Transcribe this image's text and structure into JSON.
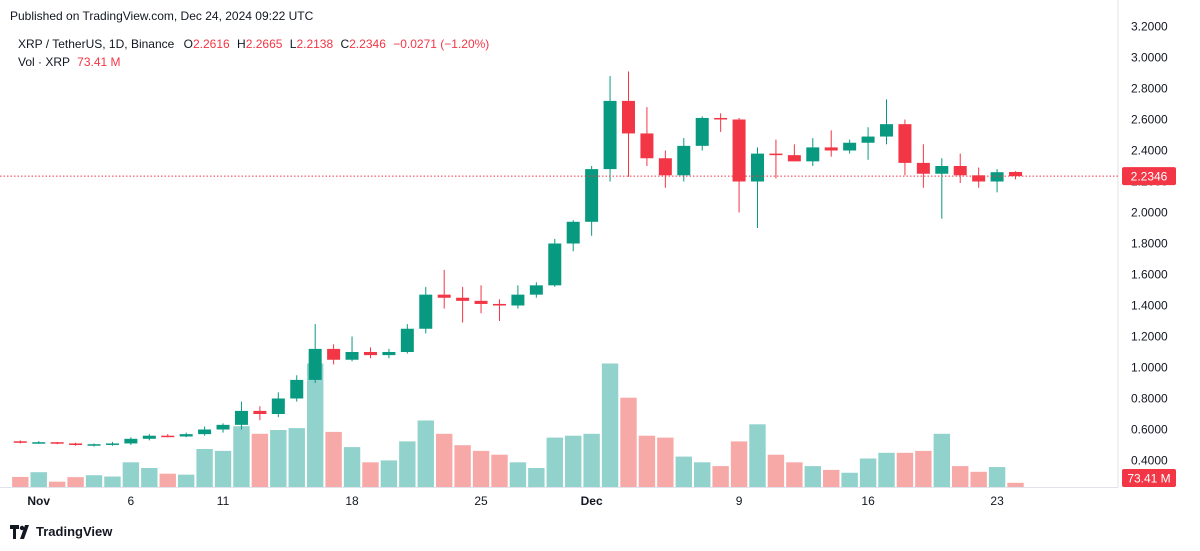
{
  "header": {
    "published": "Published on TradingView.com, Dec 24, 2024 09:22 UTC"
  },
  "legend": {
    "symbol": "XRP / TetherUS, 1D, Binance",
    "open_label": "O",
    "open": "2.2616",
    "high_label": "H",
    "high": "2.2665",
    "low_label": "L",
    "low": "2.2138",
    "close_label": "C",
    "close": "2.2346",
    "change": "−0.0271 (−1.20%)",
    "vol_label": "Vol · XRP",
    "vol": "73.41 M"
  },
  "footer": {
    "brand": "TradingView",
    "logo_icon": "tradingview-logo-icon"
  },
  "colors": {
    "up": "#089981",
    "down": "#f23645",
    "vol_up": "#92d2cc",
    "vol_down": "#f7a9a7"
  },
  "chart_data": {
    "type": "candlestick",
    "price_axis": {
      "ticks": [
        "3.2000",
        "3.0000",
        "2.8000",
        "2.6000",
        "2.4000",
        "2.2000",
        "2.0000",
        "1.8000",
        "1.6000",
        "1.4000",
        "1.2000",
        "1.0000",
        "0.8000",
        "0.6000",
        "0.4000"
      ],
      "ylim": [
        0.4,
        3.2
      ]
    },
    "last_price_label": "2.2346",
    "last_volume_label": "73.41 M",
    "x_ticks": [
      {
        "label": "Nov",
        "date": "2024-11-01"
      },
      {
        "label": "6",
        "date": "2024-11-06"
      },
      {
        "label": "11",
        "date": "2024-11-11"
      },
      {
        "label": "18",
        "date": "2024-11-18"
      },
      {
        "label": "25",
        "date": "2024-11-25"
      },
      {
        "label": "Dec",
        "date": "2024-12-01"
      },
      {
        "label": "9",
        "date": "2024-12-09"
      },
      {
        "label": "16",
        "date": "2024-12-16"
      },
      {
        "label": "23",
        "date": "2024-12-23"
      }
    ],
    "candles": [
      {
        "date": "2024-10-31",
        "open": 0.524,
        "high": 0.53,
        "low": 0.51,
        "close": 0.515,
        "volume": 53
      },
      {
        "date": "2024-11-01",
        "open": 0.515,
        "high": 0.525,
        "low": 0.508,
        "close": 0.518,
        "volume": 78
      },
      {
        "date": "2024-11-02",
        "open": 0.518,
        "high": 0.52,
        "low": 0.505,
        "close": 0.51,
        "volume": 28
      },
      {
        "date": "2024-11-03",
        "open": 0.51,
        "high": 0.515,
        "low": 0.495,
        "close": 0.5,
        "volume": 52
      },
      {
        "date": "2024-11-04",
        "open": 0.5,
        "high": 0.51,
        "low": 0.49,
        "close": 0.505,
        "volume": 62
      },
      {
        "date": "2024-11-05",
        "open": 0.505,
        "high": 0.52,
        "low": 0.495,
        "close": 0.51,
        "volume": 55
      },
      {
        "date": "2024-11-06",
        "open": 0.51,
        "high": 0.55,
        "low": 0.5,
        "close": 0.54,
        "volume": 130
      },
      {
        "date": "2024-11-07",
        "open": 0.54,
        "high": 0.57,
        "low": 0.53,
        "close": 0.56,
        "volume": 100
      },
      {
        "date": "2024-11-08",
        "open": 0.56,
        "high": 0.57,
        "low": 0.55,
        "close": 0.555,
        "volume": 70
      },
      {
        "date": "2024-11-09",
        "open": 0.555,
        "high": 0.58,
        "low": 0.55,
        "close": 0.57,
        "volume": 65
      },
      {
        "date": "2024-11-10",
        "open": 0.57,
        "high": 0.62,
        "low": 0.56,
        "close": 0.6,
        "volume": 200
      },
      {
        "date": "2024-11-11",
        "open": 0.6,
        "high": 0.64,
        "low": 0.58,
        "close": 0.63,
        "volume": 190
      },
      {
        "date": "2024-11-12",
        "open": 0.63,
        "high": 0.78,
        "low": 0.6,
        "close": 0.72,
        "volume": 320
      },
      {
        "date": "2024-11-13",
        "open": 0.72,
        "high": 0.75,
        "low": 0.66,
        "close": 0.7,
        "volume": 280
      },
      {
        "date": "2024-11-14",
        "open": 0.7,
        "high": 0.84,
        "low": 0.68,
        "close": 0.8,
        "volume": 300
      },
      {
        "date": "2024-11-15",
        "open": 0.8,
        "high": 0.95,
        "low": 0.78,
        "close": 0.92,
        "volume": 310
      },
      {
        "date": "2024-11-16",
        "open": 0.92,
        "high": 1.28,
        "low": 0.9,
        "close": 1.12,
        "volume": 650
      },
      {
        "date": "2024-11-17",
        "open": 1.12,
        "high": 1.15,
        "low": 1.02,
        "close": 1.05,
        "volume": 290
      },
      {
        "date": "2024-11-18",
        "open": 1.05,
        "high": 1.2,
        "low": 1.04,
        "close": 1.1,
        "volume": 210
      },
      {
        "date": "2024-11-19",
        "open": 1.1,
        "high": 1.13,
        "low": 1.06,
        "close": 1.08,
        "volume": 130
      },
      {
        "date": "2024-11-20",
        "open": 1.08,
        "high": 1.12,
        "low": 1.06,
        "close": 1.1,
        "volume": 140
      },
      {
        "date": "2024-11-21",
        "open": 1.1,
        "high": 1.28,
        "low": 1.09,
        "close": 1.25,
        "volume": 240
      },
      {
        "date": "2024-11-22",
        "open": 1.25,
        "high": 1.52,
        "low": 1.22,
        "close": 1.47,
        "volume": 350
      },
      {
        "date": "2024-11-23",
        "open": 1.47,
        "high": 1.63,
        "low": 1.38,
        "close": 1.45,
        "volume": 280
      },
      {
        "date": "2024-11-24",
        "open": 1.45,
        "high": 1.52,
        "low": 1.29,
        "close": 1.43,
        "volume": 220
      },
      {
        "date": "2024-11-25",
        "open": 1.43,
        "high": 1.53,
        "low": 1.35,
        "close": 1.41,
        "volume": 190
      },
      {
        "date": "2024-11-26",
        "open": 1.41,
        "high": 1.44,
        "low": 1.3,
        "close": 1.4,
        "volume": 170
      },
      {
        "date": "2024-11-27",
        "open": 1.4,
        "high": 1.53,
        "low": 1.38,
        "close": 1.47,
        "volume": 130
      },
      {
        "date": "2024-11-28",
        "open": 1.47,
        "high": 1.55,
        "low": 1.45,
        "close": 1.53,
        "volume": 100
      },
      {
        "date": "2024-11-29",
        "open": 1.53,
        "high": 1.83,
        "low": 1.52,
        "close": 1.8,
        "volume": 260
      },
      {
        "date": "2024-11-30",
        "open": 1.8,
        "high": 1.95,
        "low": 1.75,
        "close": 1.94,
        "volume": 270
      },
      {
        "date": "2024-12-01",
        "open": 1.94,
        "high": 2.3,
        "low": 1.85,
        "close": 2.28,
        "volume": 280
      },
      {
        "date": "2024-12-02",
        "open": 2.28,
        "high": 2.88,
        "low": 2.2,
        "close": 2.72,
        "volume": 650
      },
      {
        "date": "2024-12-03",
        "open": 2.72,
        "high": 2.91,
        "low": 2.23,
        "close": 2.51,
        "volume": 470
      },
      {
        "date": "2024-12-04",
        "open": 2.51,
        "high": 2.68,
        "low": 2.3,
        "close": 2.35,
        "volume": 270
      },
      {
        "date": "2024-12-05",
        "open": 2.35,
        "high": 2.4,
        "low": 2.16,
        "close": 2.24,
        "volume": 260
      },
      {
        "date": "2024-12-06",
        "open": 2.24,
        "high": 2.48,
        "low": 2.2,
        "close": 2.43,
        "volume": 160
      },
      {
        "date": "2024-12-07",
        "open": 2.43,
        "high": 2.62,
        "low": 2.4,
        "close": 2.61,
        "volume": 130
      },
      {
        "date": "2024-12-08",
        "open": 2.61,
        "high": 2.64,
        "low": 2.52,
        "close": 2.6,
        "volume": 110
      },
      {
        "date": "2024-12-09",
        "open": 2.6,
        "high": 2.61,
        "low": 2.0,
        "close": 2.2,
        "volume": 240
      },
      {
        "date": "2024-12-10",
        "open": 2.2,
        "high": 2.42,
        "low": 1.9,
        "close": 2.38,
        "volume": 330
      },
      {
        "date": "2024-12-11",
        "open": 2.38,
        "high": 2.47,
        "low": 2.22,
        "close": 2.37,
        "volume": 170
      },
      {
        "date": "2024-12-12",
        "open": 2.37,
        "high": 2.44,
        "low": 2.33,
        "close": 2.33,
        "volume": 130
      },
      {
        "date": "2024-12-13",
        "open": 2.33,
        "high": 2.48,
        "low": 2.3,
        "close": 2.42,
        "volume": 110
      },
      {
        "date": "2024-12-14",
        "open": 2.42,
        "high": 2.53,
        "low": 2.36,
        "close": 2.4,
        "volume": 90
      },
      {
        "date": "2024-12-15",
        "open": 2.4,
        "high": 2.47,
        "low": 2.38,
        "close": 2.45,
        "volume": 75
      },
      {
        "date": "2024-12-16",
        "open": 2.45,
        "high": 2.55,
        "low": 2.34,
        "close": 2.49,
        "volume": 150
      },
      {
        "date": "2024-12-17",
        "open": 2.49,
        "high": 2.73,
        "low": 2.44,
        "close": 2.57,
        "volume": 180
      },
      {
        "date": "2024-12-18",
        "open": 2.57,
        "high": 2.6,
        "low": 2.24,
        "close": 2.32,
        "volume": 180
      },
      {
        "date": "2024-12-19",
        "open": 2.32,
        "high": 2.44,
        "low": 2.16,
        "close": 2.25,
        "volume": 190
      },
      {
        "date": "2024-12-20",
        "open": 2.25,
        "high": 2.35,
        "low": 1.96,
        "close": 2.3,
        "volume": 280
      },
      {
        "date": "2024-12-21",
        "open": 2.3,
        "high": 2.38,
        "low": 2.19,
        "close": 2.24,
        "volume": 110
      },
      {
        "date": "2024-12-22",
        "open": 2.24,
        "high": 2.29,
        "low": 2.16,
        "close": 2.2,
        "volume": 80
      },
      {
        "date": "2024-12-23",
        "open": 2.2,
        "high": 2.28,
        "low": 2.13,
        "close": 2.26,
        "volume": 105
      },
      {
        "date": "2024-12-24",
        "open": 2.2616,
        "high": 2.2665,
        "low": 2.2138,
        "close": 2.2346,
        "volume": 22
      }
    ]
  }
}
